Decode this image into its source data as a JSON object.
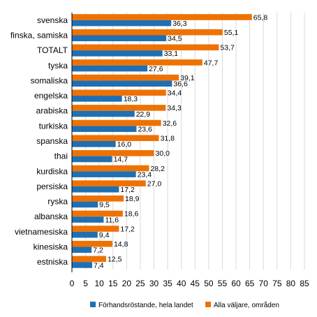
{
  "chart_data": {
    "type": "bar",
    "orientation": "horizontal",
    "categories": [
      "svenska",
      "finska, samiska",
      "TOTALT",
      "tyska",
      "somaliska",
      "engelska",
      "arabiska",
      "turkiska",
      "spanska",
      "thai",
      "kurdiska",
      "persiska",
      "ryska",
      "albanska",
      "vietnamesiska",
      "kinesiska",
      "estniska"
    ],
    "series": [
      {
        "name": "Förhandsröstande, hela landet",
        "color": "#1f6fb2",
        "values": [
          36.3,
          34.5,
          33.1,
          27.6,
          36.6,
          18.3,
          22.9,
          23.6,
          16.0,
          14.7,
          23.4,
          17.2,
          9.5,
          11.6,
          9.4,
          7.2,
          7.4
        ],
        "labels": [
          "36,3",
          "34,5",
          "33,1",
          "27,6",
          "36,6",
          "18,3",
          "22,9",
          "23,6",
          "16,0",
          "14,7",
          "23,4",
          "17,2",
          "9,5",
          "11,6",
          "9,4",
          "7,2",
          "7,4"
        ]
      },
      {
        "name": "Alla väljare, områden",
        "color": "#ee7203",
        "values": [
          65.8,
          55.1,
          53.7,
          47.7,
          39.1,
          34.4,
          34.3,
          32.6,
          31.8,
          30.0,
          28.2,
          27.0,
          18.9,
          18.6,
          17.2,
          14.8,
          12.5
        ],
        "labels": [
          "65,8",
          "55,1",
          "53,7",
          "47,7",
          "39,1",
          "34,4",
          "34,3",
          "32,6",
          "31,8",
          "30,0",
          "28,2",
          "27,0",
          "18,9",
          "18,6",
          "17,2",
          "14,8",
          "12,5"
        ]
      }
    ],
    "xlim": [
      0,
      85
    ],
    "xticks": [
      0,
      5,
      10,
      15,
      20,
      25,
      30,
      35,
      40,
      45,
      50,
      55,
      60,
      65,
      70,
      75,
      80,
      85
    ],
    "grid": "vertical",
    "legend": "bottom"
  }
}
